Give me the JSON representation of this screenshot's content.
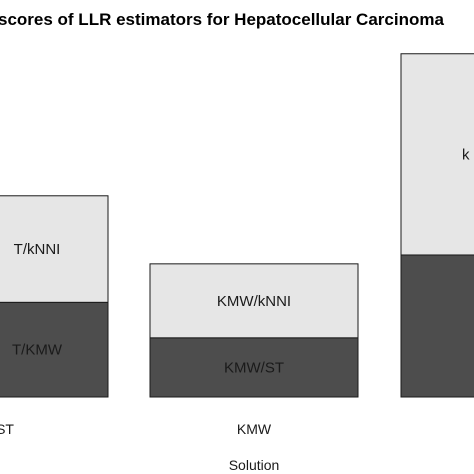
{
  "chart_data": {
    "type": "bar",
    "stacked": true,
    "title": "scores of LLR estimators for Hepatocellular Carcinoma",
    "xlabel": "Solution",
    "ylabel": "",
    "categories": [
      "ST",
      "KMW",
      ""
    ],
    "segments": [
      [
        {
          "value": 32,
          "label": "T/KMW",
          "color": "#4d4d4d"
        },
        {
          "value": 36,
          "label": "T/kNNI",
          "color": "#e6e6e6"
        }
      ],
      [
        {
          "value": 20,
          "label": "KMW/ST",
          "color": "#4d4d4d"
        },
        {
          "value": 25,
          "label": "KMW/kNNI",
          "color": "#e6e6e6"
        }
      ],
      [
        {
          "value": 48,
          "label": "",
          "color": "#4d4d4d"
        },
        {
          "value": 68,
          "label": "k",
          "color": "#e6e6e6"
        }
      ]
    ],
    "ylim": [
      0,
      122
    ],
    "grid": false,
    "legend": "none"
  }
}
